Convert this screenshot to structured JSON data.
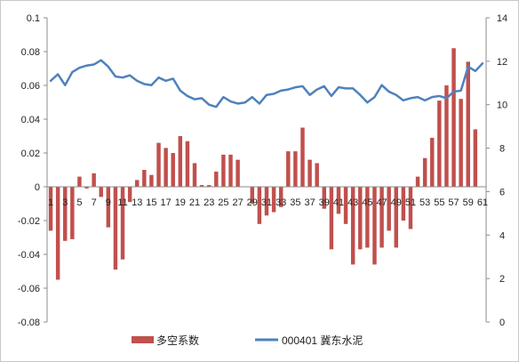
{
  "chart_data": {
    "type": "bar+line",
    "x": [
      "1",
      "2",
      "3",
      "4",
      "5",
      "6",
      "7",
      "8",
      "9",
      "10",
      "11",
      "12",
      "13",
      "14",
      "15",
      "16",
      "17",
      "18",
      "19",
      "20",
      "21",
      "22",
      "23",
      "24",
      "25",
      "26",
      "27",
      "28",
      "29",
      "30",
      "31",
      "32",
      "33",
      "34",
      "35",
      "36",
      "37",
      "38",
      "39",
      "40",
      "41",
      "42",
      "43",
      "44",
      "45",
      "46",
      "47",
      "48",
      "49",
      "50",
      "51",
      "52",
      "53",
      "54",
      "55",
      "56",
      "57",
      "58",
      "59",
      "60",
      "61"
    ],
    "x_tick_labels": [
      "1",
      "3",
      "5",
      "7",
      "9",
      "11",
      "13",
      "15",
      "17",
      "19",
      "21",
      "23",
      "25",
      "27",
      "29",
      "31",
      "33",
      "35",
      "37",
      "39",
      "41",
      "43",
      "45",
      "47",
      "49",
      "51",
      "53",
      "55",
      "57",
      "59",
      "61"
    ],
    "series": [
      {
        "name": "多空系数",
        "type": "bar",
        "axis": "left",
        "color": "#c0504d",
        "values": [
          -0.026,
          -0.055,
          -0.032,
          -0.031,
          0.006,
          -0.001,
          0.008,
          -0.006,
          -0.024,
          -0.049,
          -0.043,
          -0.009,
          0.004,
          0.01,
          0.007,
          0.026,
          0.023,
          0.02,
          0.03,
          0.027,
          0.014,
          0.001,
          0.001,
          0.009,
          0.019,
          0.019,
          0.016,
          0.0,
          -0.01,
          -0.022,
          -0.017,
          -0.015,
          -0.012,
          0.021,
          0.021,
          0.035,
          0.016,
          0.014,
          -0.013,
          -0.037,
          -0.016,
          -0.022,
          -0.046,
          -0.037,
          -0.036,
          -0.046,
          -0.036,
          -0.026,
          -0.036,
          -0.02,
          -0.025,
          0.006,
          0.017,
          0.029,
          0.051,
          0.06,
          0.082,
          0.052,
          0.074,
          0.034,
          0.0
        ]
      },
      {
        "name": "000401 冀东水泥",
        "type": "line",
        "axis": "right",
        "color": "#4f81bd",
        "values": [
          11.1,
          11.4,
          10.9,
          11.5,
          11.7,
          11.8,
          11.85,
          12.05,
          11.75,
          11.3,
          11.25,
          11.35,
          11.1,
          10.95,
          10.9,
          11.25,
          11.1,
          11.2,
          10.65,
          10.4,
          10.25,
          10.3,
          10.0,
          9.9,
          10.35,
          10.15,
          10.05,
          10.1,
          10.35,
          10.05,
          10.45,
          10.5,
          10.65,
          10.7,
          10.8,
          10.85,
          10.45,
          10.7,
          10.85,
          10.4,
          10.8,
          10.75,
          10.75,
          10.45,
          10.1,
          10.35,
          10.9,
          10.6,
          10.45,
          10.2,
          10.3,
          10.35,
          10.2,
          10.35,
          10.4,
          10.3,
          10.6,
          10.65,
          11.75,
          11.55,
          11.9
        ]
      }
    ],
    "left_axis": {
      "min": -0.08,
      "max": 0.1,
      "ticks": [
        "-0.08",
        "-0.06",
        "-0.04",
        "-0.02",
        "0",
        "0.02",
        "0.04",
        "0.06",
        "0.08",
        "0.1"
      ]
    },
    "right_axis": {
      "min": 0,
      "max": 14,
      "ticks": [
        "0",
        "2",
        "4",
        "6",
        "8",
        "10",
        "12",
        "14"
      ]
    },
    "grid": false,
    "legend": {
      "position": "bottom",
      "entries": [
        {
          "label": "多空系数",
          "marker": "rect",
          "color": "#c0504d"
        },
        {
          "label": "000401 冀东水泥",
          "marker": "line",
          "color": "#4f81bd"
        }
      ]
    }
  }
}
